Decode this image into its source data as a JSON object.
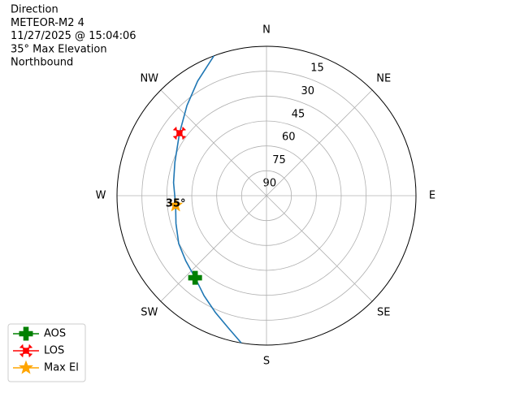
{
  "chart_data": {
    "type": "polar",
    "title_lines": [
      "Direction",
      "METEOR-M2 4",
      "11/27/2025 @ 15:04:06",
      "35° Max Elevation",
      "Northbound"
    ],
    "xlim": [
      0,
      360
    ],
    "xticks": [
      {
        "value": 0,
        "label": "N"
      },
      {
        "value": 45,
        "label": "NE"
      },
      {
        "value": 90,
        "label": "E"
      },
      {
        "value": 135,
        "label": "SE"
      },
      {
        "value": 180,
        "label": "S"
      },
      {
        "value": 225,
        "label": "SW"
      },
      {
        "value": 270,
        "label": "W"
      },
      {
        "value": 315,
        "label": "NW"
      }
    ],
    "ylim": [
      90,
      0
    ],
    "yticks": [
      90,
      75,
      60,
      45,
      30,
      15
    ],
    "grid": true,
    "legend": "lower left",
    "series": [
      {
        "color": "#1f77b4",
        "x": [
          189.7,
          196,
          203.6,
          212,
          221,
          231,
          241.4,
          253,
          264,
          278,
          290,
          305.7,
          318.6,
          329,
          339.4
        ],
        "values": [
          0,
          7,
          13.2,
          19,
          24.5,
          27.5,
          29.8,
          33,
          35,
          33.5,
          31.3,
          25.5,
          17.6,
          9.5,
          0
        ]
      },
      {
        "name": "AOS",
        "color": "#008000",
        "marker": "plus",
        "x": [
          221
        ],
        "values": [
          24.5
        ]
      },
      {
        "name": "LOS",
        "color": "#ff0000",
        "marker": "x",
        "x": [
          305.7
        ],
        "values": [
          25.5
        ]
      },
      {
        "name": "Max El",
        "color": "#ffa500",
        "marker": "star",
        "x": [
          264
        ],
        "values": [
          35
        ]
      }
    ],
    "annotation": "35°"
  }
}
